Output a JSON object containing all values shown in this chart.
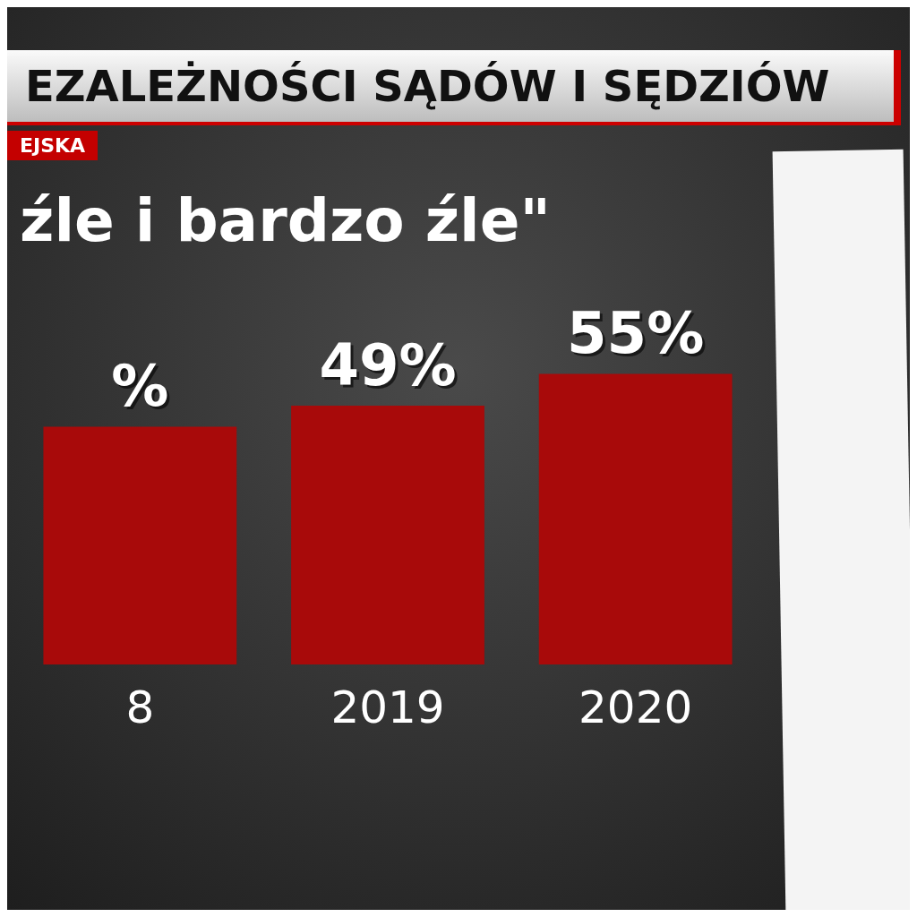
{
  "chart_data": {
    "type": "bar",
    "title": "EZALEŻNOŚCI SĄDÓW I SĘDZIÓW",
    "subtitle": "EJSKA",
    "annotations": [
      "źle i bardzo źle\""
    ],
    "categories": [
      "8",
      "2019",
      "2020"
    ],
    "values": [
      45,
      49,
      55
    ],
    "value_labels": [
      "%",
      "49%",
      "55%"
    ],
    "color": "#a80a0a",
    "tick_labels": "x"
  }
}
